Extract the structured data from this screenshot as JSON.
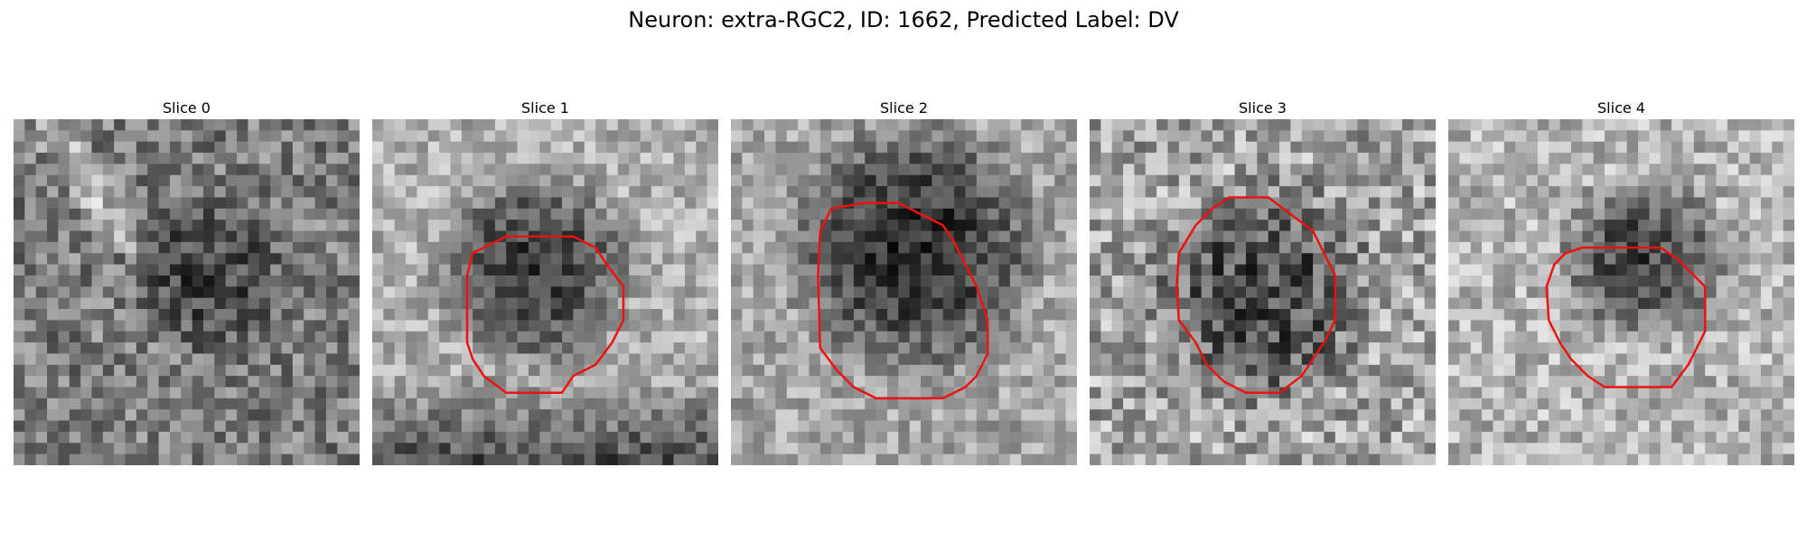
{
  "figure": {
    "title": "Neuron: extra-RGC2, ID: 1662, Predicted Label: DV",
    "outline_color": "#ee1111"
  },
  "panels": [
    {
      "title": "Slice 0",
      "has_outline": false
    },
    {
      "title": "Slice 1",
      "has_outline": true
    },
    {
      "title": "Slice 2",
      "has_outline": true
    },
    {
      "title": "Slice 3",
      "has_outline": true
    },
    {
      "title": "Slice 4",
      "has_outline": true
    }
  ]
}
